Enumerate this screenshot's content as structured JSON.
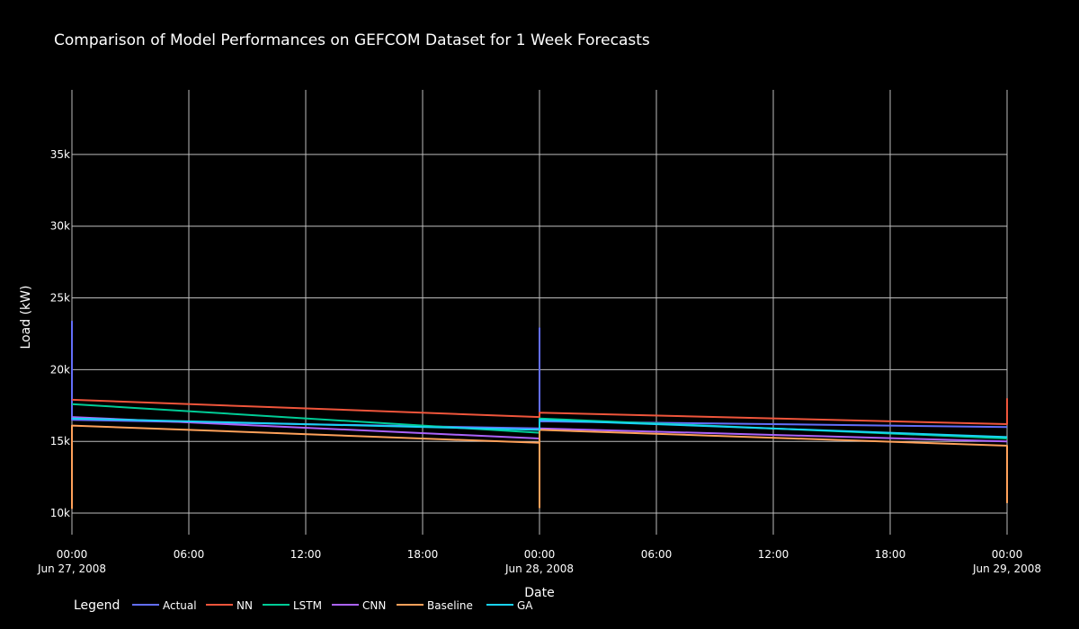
{
  "chart_data": {
    "type": "line",
    "title": "Comparison of Model Performances on GEFCOM Dataset for 1 Week Forecasts",
    "xlabel": "Date",
    "ylabel": "Load (kW)",
    "xlim": [
      "2008-06-27T00:00",
      "2008-06-29T00:00"
    ],
    "ylim": [
      8500,
      39500
    ],
    "grid": true,
    "legend_title": "Legend",
    "legend_position": "bottom",
    "y_ticks": [
      {
        "value": 10000,
        "label": "10k"
      },
      {
        "value": 15000,
        "label": "15k"
      },
      {
        "value": 20000,
        "label": "20k"
      },
      {
        "value": 25000,
        "label": "25k"
      },
      {
        "value": 30000,
        "label": "30k"
      },
      {
        "value": 35000,
        "label": "35k"
      }
    ],
    "x_ticks": [
      {
        "value": "2008-06-27T00:00",
        "label": "00:00",
        "sublabel": "Jun 27, 2008"
      },
      {
        "value": "2008-06-27T06:00",
        "label": "06:00",
        "sublabel": ""
      },
      {
        "value": "2008-06-27T12:00",
        "label": "12:00",
        "sublabel": ""
      },
      {
        "value": "2008-06-27T18:00",
        "label": "18:00",
        "sublabel": ""
      },
      {
        "value": "2008-06-28T00:00",
        "label": "00:00",
        "sublabel": "Jun 28, 2008"
      },
      {
        "value": "2008-06-28T06:00",
        "label": "06:00",
        "sublabel": ""
      },
      {
        "value": "2008-06-28T12:00",
        "label": "12:00",
        "sublabel": ""
      },
      {
        "value": "2008-06-28T18:00",
        "label": "18:00",
        "sublabel": ""
      },
      {
        "value": "2008-06-29T00:00",
        "label": "00:00",
        "sublabel": "Jun 29, 2008"
      }
    ],
    "series": [
      {
        "name": "Actual",
        "color": "#636efa",
        "x": [
          "2008-06-27T00:00",
          "2008-06-27T00:00",
          "2008-06-27T00:00",
          "2008-06-28T00:00",
          "2008-06-28T00:00",
          "2008-06-28T00:00",
          "2008-06-29T00:00"
        ],
        "y": [
          23400,
          17500,
          16500,
          15900,
          22900,
          16400,
          16000
        ]
      },
      {
        "name": "NN",
        "color": "#ef553b",
        "x": [
          "2008-06-27T00:00",
          "2008-06-28T00:00",
          "2008-06-28T00:00",
          "2008-06-29T00:00",
          "2008-06-29T00:00"
        ],
        "y": [
          17900,
          16700,
          17000,
          16200,
          18000
        ]
      },
      {
        "name": "LSTM",
        "color": "#00cc96",
        "x": [
          "2008-06-27T00:00",
          "2008-06-28T00:00",
          "2008-06-28T00:00",
          "2008-06-29T00:00"
        ],
        "y": [
          17600,
          15600,
          16600,
          15200
        ]
      },
      {
        "name": "CNN",
        "color": "#ab63fa",
        "x": [
          "2008-06-27T00:00",
          "2008-06-28T00:00",
          "2008-06-28T00:00",
          "2008-06-29T00:00"
        ],
        "y": [
          16700,
          15200,
          15900,
          15000
        ]
      },
      {
        "name": "Baseline",
        "color": "#ffa15a",
        "x": [
          "2008-06-27T00:00",
          "2008-06-27T00:00",
          "2008-06-28T00:00",
          "2008-06-28T00:00",
          "2008-06-28T00:00",
          "2008-06-29T00:00",
          "2008-06-29T00:00"
        ],
        "y": [
          10300,
          16100,
          14900,
          10400,
          15800,
          14700,
          10700
        ]
      },
      {
        "name": "GA",
        "color": "#19d3f3",
        "x": [
          "2008-06-27T00:00",
          "2008-06-28T00:00",
          "2008-06-28T00:00",
          "2008-06-29T00:00"
        ],
        "y": [
          16600,
          15800,
          16500,
          15300
        ]
      }
    ]
  }
}
